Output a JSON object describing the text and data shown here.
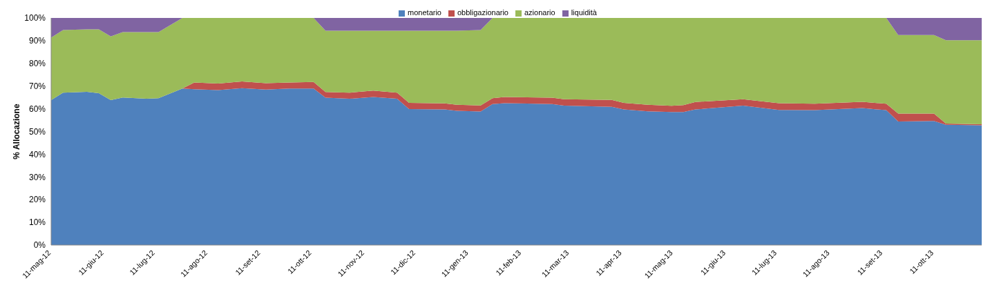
{
  "chart_data": {
    "type": "area",
    "stacked": true,
    "ylabel": "% Allocazione",
    "x": [
      "2012-05-11",
      "2012-05-18",
      "2012-06-01",
      "2012-06-08",
      "2012-06-15",
      "2012-06-22",
      "2012-07-06",
      "2012-07-13",
      "2012-07-27",
      "2012-08-03",
      "2012-08-17",
      "2012-08-31",
      "2012-09-14",
      "2012-09-28",
      "2012-10-12",
      "2012-10-19",
      "2012-11-02",
      "2012-11-16",
      "2012-11-30",
      "2012-12-07",
      "2012-12-28",
      "2013-01-04",
      "2013-01-18",
      "2013-01-25",
      "2013-02-01",
      "2013-03-01",
      "2013-03-08",
      "2013-04-05",
      "2013-04-12",
      "2013-04-26",
      "2013-05-10",
      "2013-05-17",
      "2013-05-24",
      "2013-06-21",
      "2013-07-12",
      "2013-08-02",
      "2013-08-30",
      "2013-09-13",
      "2013-09-20",
      "2013-10-11",
      "2013-10-18",
      "2013-11-08"
    ],
    "series": [
      {
        "name": "monetario",
        "color": "#4f81bd",
        "values": [
          63.8,
          67.1,
          67.5,
          66.9,
          63.8,
          65.0,
          64.4,
          64.7,
          68.9,
          68.6,
          68.2,
          69.1,
          68.5,
          68.9,
          68.9,
          64.9,
          64.4,
          65.2,
          64.4,
          59.9,
          59.7,
          59.1,
          58.8,
          62.1,
          62.5,
          62.1,
          61.4,
          60.9,
          59.7,
          58.9,
          58.6,
          58.6,
          59.7,
          61.4,
          59.5,
          59.4,
          60.3,
          59.4,
          54.4,
          54.6,
          53.0,
          52.7
        ]
      },
      {
        "name": "obbligazionario",
        "color": "#c0504d",
        "values": [
          0,
          0,
          0,
          0,
          0,
          0,
          0,
          0,
          0,
          3.0,
          2.9,
          2.9,
          2.8,
          2.7,
          2.9,
          2.5,
          2.7,
          2.8,
          2.7,
          2.7,
          2.7,
          2.7,
          2.7,
          2.6,
          2.7,
          2.8,
          2.8,
          3.0,
          2.9,
          2.9,
          2.7,
          3.0,
          3.3,
          2.8,
          3.0,
          2.8,
          2.8,
          2.8,
          3.5,
          3.3,
          0.5,
          0.5
        ]
      },
      {
        "name": "azionario",
        "color": "#9bbb59",
        "values": [
          27.5,
          27.6,
          27.5,
          28.1,
          28.1,
          28.8,
          29.4,
          29.1,
          31.1,
          28.4,
          28.9,
          28.0,
          28.7,
          28.4,
          28.2,
          27.0,
          27.3,
          26.4,
          27.3,
          31.8,
          32.0,
          32.6,
          33.2,
          35.3,
          34.8,
          35.1,
          35.8,
          36.1,
          37.4,
          38.2,
          38.7,
          38.4,
          37.0,
          35.8,
          37.5,
          37.8,
          36.9,
          37.8,
          34.6,
          34.6,
          36.7,
          37.0
        ]
      },
      {
        "name": "liquidità",
        "color": "#8064a2",
        "values": [
          8.7,
          5.3,
          5.0,
          5.0,
          8.1,
          6.2,
          6.2,
          6.2,
          0,
          0,
          0,
          0,
          0,
          0,
          0,
          5.6,
          5.6,
          5.6,
          5.6,
          5.6,
          5.6,
          5.6,
          5.3,
          0,
          0,
          0,
          0,
          0,
          0,
          0,
          0,
          0,
          0,
          0,
          0,
          0,
          0,
          0,
          7.5,
          7.5,
          9.8,
          9.8
        ]
      }
    ],
    "xlim": [
      "2012-05-11",
      "2013-11-08"
    ],
    "xticks": [
      {
        "value": "2012-05-11",
        "label": "11-mag-12"
      },
      {
        "value": "2012-06-11",
        "label": "11-giu-12"
      },
      {
        "value": "2012-07-11",
        "label": "11-lug-12"
      },
      {
        "value": "2012-08-11",
        "label": "11-ago-12"
      },
      {
        "value": "2012-09-11",
        "label": "11-set-12"
      },
      {
        "value": "2012-10-11",
        "label": "11-ott-12"
      },
      {
        "value": "2012-11-11",
        "label": "11-nov-12"
      },
      {
        "value": "2012-12-11",
        "label": "11-dic-12"
      },
      {
        "value": "2013-01-11",
        "label": "11-gen-13"
      },
      {
        "value": "2013-02-11",
        "label": "11-feb-13"
      },
      {
        "value": "2013-03-11",
        "label": "11-mar-13"
      },
      {
        "value": "2013-04-11",
        "label": "11-apr-13"
      },
      {
        "value": "2013-05-11",
        "label": "11-mag-13"
      },
      {
        "value": "2013-06-11",
        "label": "11-giu-13"
      },
      {
        "value": "2013-07-11",
        "label": "11-lug-13"
      },
      {
        "value": "2013-08-11",
        "label": "11-ago-13"
      },
      {
        "value": "2013-09-11",
        "label": "11-set-13"
      },
      {
        "value": "2013-10-11",
        "label": "11-ott-13"
      }
    ],
    "ylim": [
      0,
      100
    ],
    "yticks": [
      {
        "value": 0,
        "label": "0%"
      },
      {
        "value": 10,
        "label": "10%"
      },
      {
        "value": 20,
        "label": "20%"
      },
      {
        "value": 30,
        "label": "30%"
      },
      {
        "value": 40,
        "label": "40%"
      },
      {
        "value": 50,
        "label": "50%"
      },
      {
        "value": 60,
        "label": "60%"
      },
      {
        "value": 70,
        "label": "70%"
      },
      {
        "value": 80,
        "label": "80%"
      },
      {
        "value": 90,
        "label": "90%"
      },
      {
        "value": 100,
        "label": "100%"
      }
    ],
    "grid": false,
    "legend": "top"
  }
}
